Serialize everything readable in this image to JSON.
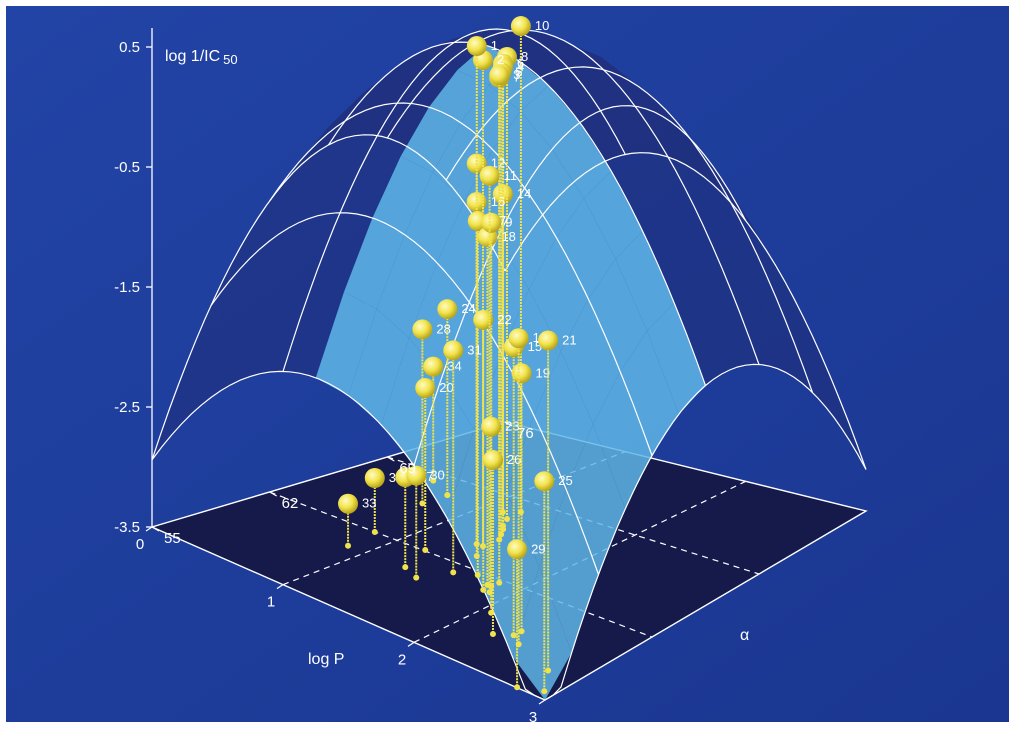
{
  "chart_data": {
    "type": "scatter",
    "title": "",
    "zlabel": "log 1/IC",
    "zlabel_sub": "50",
    "xlabel": "log P",
    "ylabel": "α",
    "xlim": [
      0,
      3
    ],
    "ylim": [
      55,
      76
    ],
    "zlim": [
      -3.5,
      0.5
    ],
    "x_ticks": [
      "0",
      "1",
      "2",
      "3"
    ],
    "y_ticks": [
      "55",
      "62",
      "69",
      "76"
    ],
    "z_ticks": [
      "0.5",
      "-0.5",
      "-1.5",
      "-2.5",
      "-3.5"
    ],
    "grid": true,
    "fitted_surface": "parabolic in log P and in α",
    "point_color": "#f0e24a",
    "surface_color": "#5fb6e6",
    "background_color": "#1e3a9a",
    "points": [
      {
        "label": "1",
        "logP": 1.18,
        "alpha": 65.5,
        "z": 0.5
      },
      {
        "label": "2",
        "logP": 1.1,
        "alpha": 66.5,
        "z": 0.3
      },
      {
        "label": "3",
        "logP": 1.55,
        "alpha": 64.0,
        "z": 0.48
      },
      {
        "label": "4",
        "logP": 1.0,
        "alpha": 68.5,
        "z": 0.1
      },
      {
        "label": "5",
        "logP": 1.05,
        "alpha": 68.0,
        "z": 0.1
      },
      {
        "label": "6",
        "logP": 0.96,
        "alpha": 68.8,
        "z": 0.1
      },
      {
        "label": "7",
        "logP": 1.1,
        "alpha": 67.5,
        "z": 0.1
      },
      {
        "label": "8",
        "logP": 0.9,
        "alpha": 69.5,
        "z": 0.1
      },
      {
        "label": "9",
        "logP": 1.55,
        "alpha": 63.5,
        "z": -0.72
      },
      {
        "label": "10",
        "logP": 0.88,
        "alpha": 70.5,
        "z": 0.3
      },
      {
        "label": "11",
        "logP": 1.6,
        "alpha": 63.0,
        "z": -0.28
      },
      {
        "label": "12",
        "logP": 1.05,
        "alpha": 66.5,
        "z": -0.58
      },
      {
        "label": "13",
        "logP": 2.2,
        "alpha": 60.0,
        "z": -1.2
      },
      {
        "label": "14",
        "logP": 0.8,
        "alpha": 70.0,
        "z": -1.1
      },
      {
        "label": "15",
        "logP": 2.1,
        "alpha": 60.5,
        "z": -1.35
      },
      {
        "label": "16",
        "logP": 1.05,
        "alpha": 66.5,
        "z": -0.9
      },
      {
        "label": "17",
        "logP": 1.38,
        "alpha": 64.0,
        "z": -0.8
      },
      {
        "label": "18",
        "logP": 1.52,
        "alpha": 63.5,
        "z": -0.85
      },
      {
        "label": "19",
        "logP": 2.1,
        "alpha": 61.0,
        "z": -1.6
      },
      {
        "label": "20",
        "logP": 0.9,
        "alpha": 64.5,
        "z": -2.4
      },
      {
        "label": "21",
        "logP": 2.55,
        "alpha": 59.0,
        "z": -1.0
      },
      {
        "label": "22",
        "logP": 1.55,
        "alpha": 63.0,
        "z": -1.5
      },
      {
        "label": "23",
        "logP": 1.8,
        "alpha": 61.5,
        "z": -2.2
      },
      {
        "label": "24",
        "logP": 0.35,
        "alpha": 70.0,
        "z": -2.2
      },
      {
        "label": "25",
        "logP": 2.7,
        "alpha": 57.5,
        "z": -2.0
      },
      {
        "label": "26",
        "logP": 2.0,
        "alpha": 60.0,
        "z": -2.3
      },
      {
        "label": "27",
        "logP": 1.0,
        "alpha": 62.5,
        "z": -3.0
      },
      {
        "label": "28",
        "logP": 0.35,
        "alpha": 68.5,
        "z": -2.3
      },
      {
        "label": "29",
        "logP": 2.55,
        "alpha": 57.0,
        "z": -2.6
      },
      {
        "label": "30",
        "logP": 1.15,
        "alpha": 62.0,
        "z": -2.9
      },
      {
        "label": "31",
        "logP": 1.25,
        "alpha": 63.5,
        "z": -1.9
      },
      {
        "label": "32",
        "logP": 0.5,
        "alpha": 64.5,
        "z": -3.3
      },
      {
        "label": "33",
        "logP": 0.55,
        "alpha": 62.5,
        "z": -3.4
      },
      {
        "label": "34",
        "logP": 0.1,
        "alpha": 71.0,
        "z": -2.8
      }
    ]
  }
}
